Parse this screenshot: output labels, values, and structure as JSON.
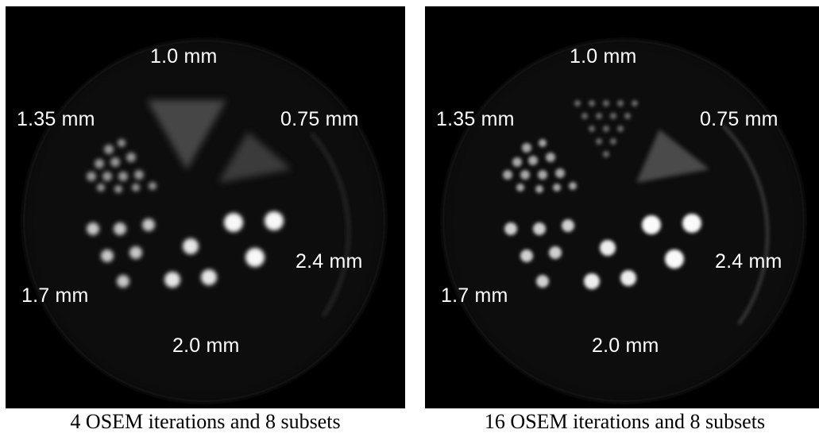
{
  "panels": [
    {
      "labels": {
        "l10": "1.0 mm",
        "l135": "1.35 mm",
        "l075": "0.75 mm",
        "l24": "2.4 mm",
        "l17": "1.7 mm",
        "l20": "2.0 mm"
      },
      "caption": "4 OSEM iterations and 8 subsets"
    },
    {
      "labels": {
        "l10": "1.0 mm",
        "l135": "1.35 mm",
        "l075": "0.75 mm",
        "l24": "2.4 mm",
        "l17": "1.7 mm",
        "l20": "2.0 mm"
      },
      "caption": "16 OSEM iterations and 8 subsets"
    }
  ]
}
